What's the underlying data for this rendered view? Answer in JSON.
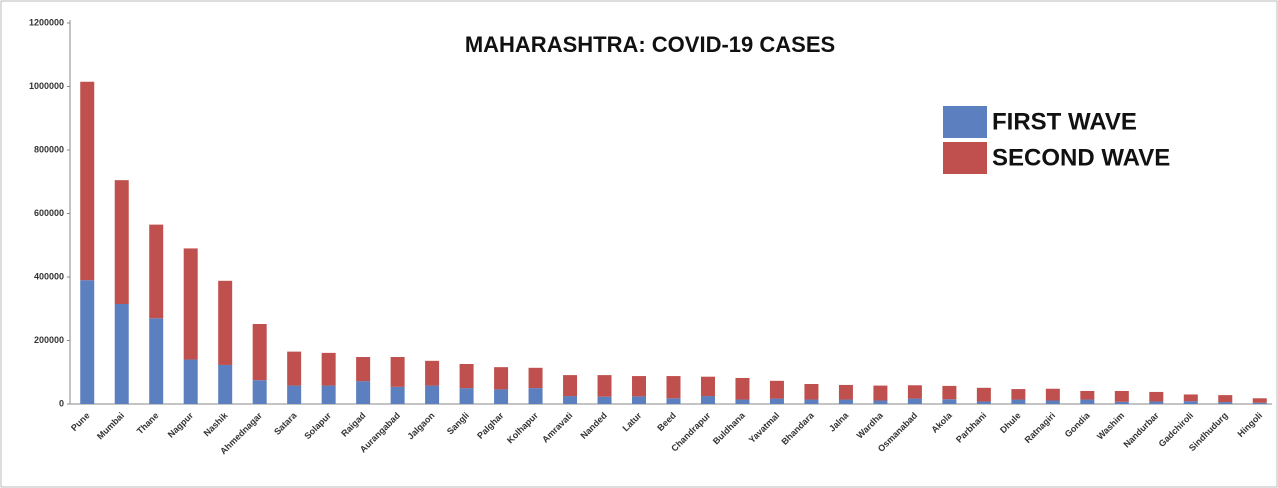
{
  "chart_data": {
    "type": "stacked-bar",
    "title": "MAHARASHTRA: COVID-19 CASES",
    "categories": [
      "Pune",
      "Mumbai",
      "Thane",
      "Nagpur",
      "Nashik",
      "Ahmednagar",
      "Satara",
      "Solapur",
      "Raigad",
      "Aurangabad",
      "Jalgaon",
      "Sangli",
      "Palghar",
      "Kolhapur",
      "Amravati",
      "Nanded",
      "Latur",
      "Beed",
      "Chandrapur",
      "Buldhana",
      "Yavatmal",
      "Bhandara",
      "Jalna",
      "Wardha",
      "Osmanabad",
      "Akola",
      "Parbhani",
      "Dhule",
      "Ratnagiri",
      "Gondia",
      "Washim",
      "Nandurbar",
      "Gadchiroli",
      "Sindhudurg",
      "Hingoli"
    ],
    "series": [
      {
        "name": "FIRST WAVE",
        "color": "#5b7fbf",
        "values": [
          390000,
          315000,
          270000,
          140000,
          123000,
          75000,
          58000,
          58000,
          72000,
          54000,
          58000,
          50000,
          46000,
          50000,
          25000,
          23000,
          24000,
          18000,
          25000,
          14000,
          17000,
          14000,
          14000,
          11000,
          17000,
          15000,
          8000,
          14000,
          11000,
          14000,
          7000,
          8000,
          9000,
          6000,
          4000
        ]
      },
      {
        "name": "SECOND WAVE",
        "color": "#c0504d",
        "values": [
          625000,
          390000,
          295000,
          350000,
          265000,
          177000,
          107000,
          103000,
          76000,
          94000,
          78000,
          76000,
          70000,
          64000,
          66000,
          68000,
          64000,
          70000,
          61000,
          68000,
          56000,
          49000,
          46000,
          47000,
          42000,
          42000,
          43000,
          33000,
          37000,
          27000,
          34000,
          30000,
          21000,
          22000,
          14000
        ]
      }
    ],
    "ylim": [
      0,
      1200000
    ],
    "yticks": [
      0,
      200000,
      400000,
      600000,
      800000,
      1000000,
      1200000
    ],
    "grid": false
  }
}
